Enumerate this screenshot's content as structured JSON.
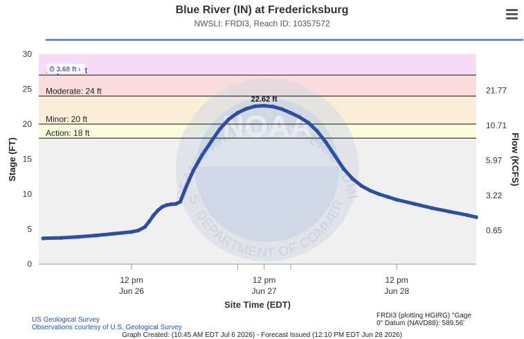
{
  "header": {
    "title": "Blue River (IN) at Fredericksburg",
    "subtitle": "NWSLI: FRDI3, Reach ID: 10357572"
  },
  "icons": {
    "menu": "hamburger-menu-icon"
  },
  "colors": {
    "major": "#f6dcf6",
    "moderate": "#fadcdc",
    "minor": "#fbeed9",
    "action": "#fbfbde",
    "normal": "#f0f0f0",
    "series": "#2c4fa3",
    "title_rule": "#6f8ccb"
  },
  "watermark": {
    "arc_text": "NATIONAL OCEANIC AND ATMOSPHERIC ADMINISTRATION",
    "bottom_text": "U.S. DEPARTMENT OF COMMERCE",
    "center_text": "NOAA"
  },
  "chart_data": {
    "type": "line",
    "title": "Blue River (IN) at Fredericksburg",
    "subtitle": "NWSLI: FRDI3, Reach ID: 10357572",
    "xlabel": "Site Time (EDT)",
    "ylabel": "Stage (FT)",
    "y2label": "Flow (KCFS)",
    "ylim": [
      0,
      30
    ],
    "yticks": [
      0,
      5,
      10,
      15,
      20,
      25,
      30
    ],
    "xlim": [
      -21,
      78
    ],
    "xticks": [
      {
        "x": 0,
        "line1": "12 pm",
        "line2": "Jun 26"
      },
      {
        "x": 24,
        "line1": "",
        "line2": ""
      },
      {
        "x": 30,
        "line1": "12 pm",
        "line2": "Jun 27"
      },
      {
        "x": 36,
        "line1": "",
        "line2": ""
      },
      {
        "x": 60,
        "line1": "12 pm",
        "line2": "Jun 28"
      }
    ],
    "flow_ticks": [
      {
        "stage": 4.8,
        "label": "0.65"
      },
      {
        "stage": 9.8,
        "label": "3.22"
      },
      {
        "stage": 14.8,
        "label": "5.97"
      },
      {
        "stage": 19.8,
        "label": "10.71"
      },
      {
        "stage": 24.8,
        "label": "21.77"
      }
    ],
    "flood_categories": [
      {
        "name": "Major",
        "label": "Major: 27 ft",
        "low": 27,
        "high": 30,
        "color": "#f6dcf6"
      },
      {
        "name": "Moderate",
        "label": "Moderate: 24 ft",
        "low": 24,
        "high": 27,
        "color": "#fadcdc"
      },
      {
        "name": "Minor",
        "label": "Minor: 20 ft",
        "low": 20,
        "high": 24,
        "color": "#fbeed9"
      },
      {
        "name": "Action",
        "label": "Action: 18 ft",
        "low": 18,
        "high": 20,
        "color": "#fbfbde"
      },
      {
        "name": "Normal",
        "label": "",
        "low": 0,
        "high": 18,
        "color": "#f0f0f0"
      }
    ],
    "grid": false,
    "legend": "none",
    "min_label": "3.68 ft",
    "max_label": "22.62 ft",
    "series": [
      {
        "color": "#2c4fa3",
        "x": [
          -20,
          -16,
          -12,
          -8,
          -4,
          0,
          1.5,
          3,
          4,
          5,
          6,
          7,
          8,
          9,
          10,
          11,
          12,
          13,
          14,
          15,
          16,
          18,
          20,
          22,
          24,
          26,
          28,
          30,
          32,
          34,
          36,
          38,
          40,
          42,
          44,
          46,
          48,
          50,
          52,
          54,
          56,
          58,
          60,
          64,
          68,
          72,
          76,
          78
        ],
        "y": [
          3.68,
          3.75,
          3.9,
          4.1,
          4.35,
          4.6,
          4.8,
          5.3,
          6.1,
          7.0,
          7.7,
          8.2,
          8.45,
          8.55,
          8.6,
          8.9,
          10.5,
          12.0,
          13.4,
          14.5,
          15.6,
          17.5,
          19.3,
          20.7,
          21.6,
          22.2,
          22.55,
          22.62,
          22.5,
          22.15,
          21.6,
          21.0,
          20.2,
          19.0,
          17.4,
          15.5,
          13.6,
          12.2,
          11.2,
          10.5,
          10.0,
          9.6,
          9.2,
          8.6,
          8.0,
          7.5,
          7.0,
          6.7
        ]
      }
    ]
  },
  "footer": {
    "source_link_1": "US Geological Survey",
    "source_link_2": "Observations courtesy of U.S. Geological Survey",
    "datum_line_1": "FRDI3 (plotting HGIRG) \"Gage",
    "datum_line_2": "0\" Datum (NAVD88): 589.56'",
    "created": "Graph Created: (10:45 AM EDT Jul 6 2026) - Forecast Issued (12:10 PM EDT Jun 28 2026)"
  }
}
